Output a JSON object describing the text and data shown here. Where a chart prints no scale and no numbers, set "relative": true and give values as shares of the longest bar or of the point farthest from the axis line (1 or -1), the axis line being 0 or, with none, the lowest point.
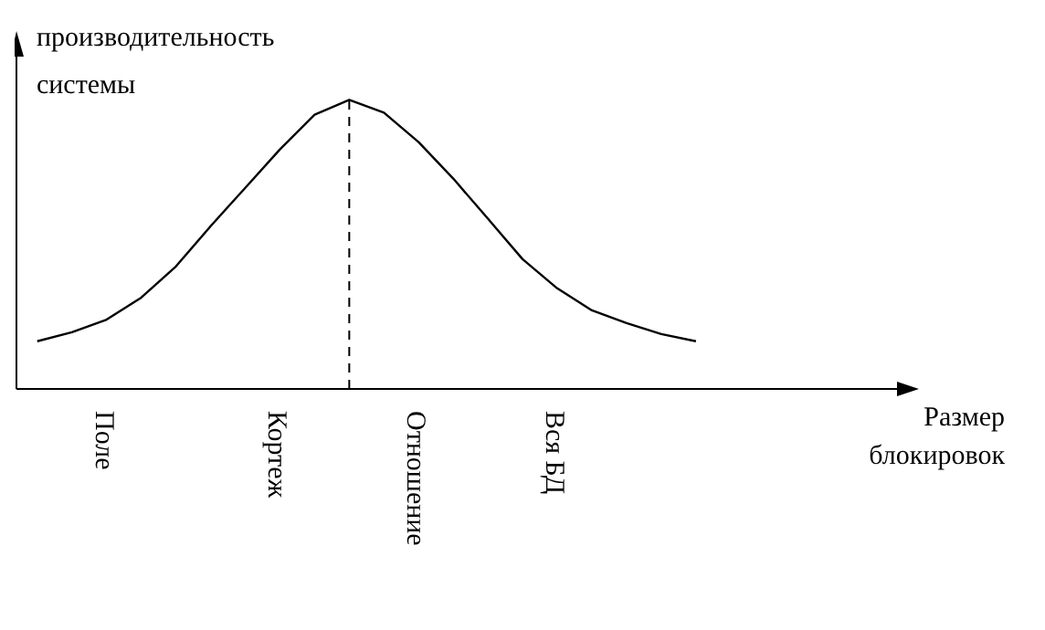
{
  "chart_data": {
    "type": "line",
    "relative": true,
    "ylabel": "производительность системы",
    "annotations": [
      "Размер блокировок"
    ],
    "categories": [
      null,
      null,
      "Поле",
      null,
      null,
      null,
      null,
      "Кортеж",
      null,
      null,
      null,
      "Отношение",
      null,
      null,
      null,
      "Вся БД",
      null,
      null,
      null,
      null
    ],
    "values": [
      0.165,
      0.196,
      0.24,
      0.316,
      0.424,
      0.563,
      0.696,
      0.829,
      0.949,
      1,
      0.956,
      0.854,
      0.728,
      0.589,
      0.449,
      0.348,
      0.272,
      0.228,
      0.19,
      0.165
    ],
    "color": "#000000",
    "ref_lines": [
      {
        "axis": "x",
        "line_style": "dashed",
        "color": "#000000"
      }
    ],
    "tick_labels": "x"
  }
}
